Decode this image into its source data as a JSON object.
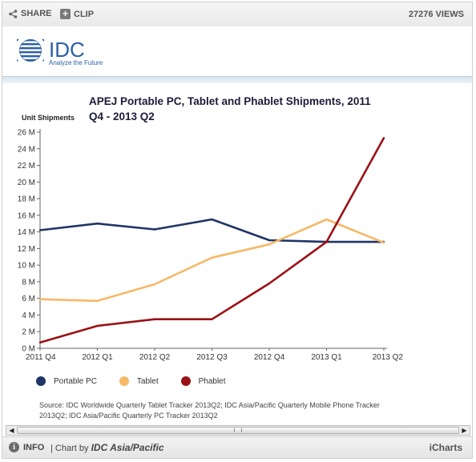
{
  "toolbar": {
    "share_label": "SHARE",
    "clip_label": "CLIP",
    "views": "27276 VIEWS"
  },
  "logo": {
    "name": "IDC",
    "tagline": "Analyze the Future"
  },
  "footer": {
    "info_label": "INFO",
    "chart_by_prefix": "| Chart by",
    "chart_by_name": "IDC Asia/Pacific",
    "brand": "iCharts"
  },
  "source_text": "Source: IDC Worldwide Quarterly Tablet Tracker 2013Q2; IDC Asia/Pacific Quarterly Mobile Phone Tracker 2013Q2; IDC Asia/Pacific Quarterly PC Tracker 2013Q2",
  "colors": {
    "portable_pc": "#1f3566",
    "tablet": "#f7b866",
    "phablet": "#9b1115",
    "idc_blue": "#2a5fa8"
  },
  "chart_data": {
    "type": "line",
    "title": "APEJ Portable PC, Tablet and Phablet Shipments, 2011 Q4 - 2013 Q2",
    "ylabel": "Unit Shipments",
    "xlabel": "",
    "x": [
      "2011 Q4",
      "2012 Q1",
      "2012 Q2",
      "2012 Q3",
      "2012 Q4",
      "2013 Q1",
      "2013 Q2"
    ],
    "ylim": [
      0,
      26
    ],
    "yticks": [
      "0 M",
      "2 M",
      "4 M",
      "6 M",
      "8 M",
      "10 M",
      "12 M",
      "14 M",
      "16 M",
      "18 M",
      "20 M",
      "22 M",
      "24 M",
      "26 M"
    ],
    "legend_position": "bottom",
    "series": [
      {
        "name": "Portable PC",
        "color": "#1f3566",
        "values": [
          14.2,
          15.0,
          14.3,
          15.5,
          13.0,
          12.8,
          12.8
        ]
      },
      {
        "name": "Tablet",
        "color": "#f7b866",
        "values": [
          5.9,
          5.7,
          7.7,
          10.9,
          12.5,
          15.5,
          12.7
        ]
      },
      {
        "name": "Phablet",
        "color": "#9b1115",
        "values": [
          0.7,
          2.7,
          3.5,
          3.5,
          7.8,
          12.8,
          25.3
        ]
      }
    ]
  }
}
